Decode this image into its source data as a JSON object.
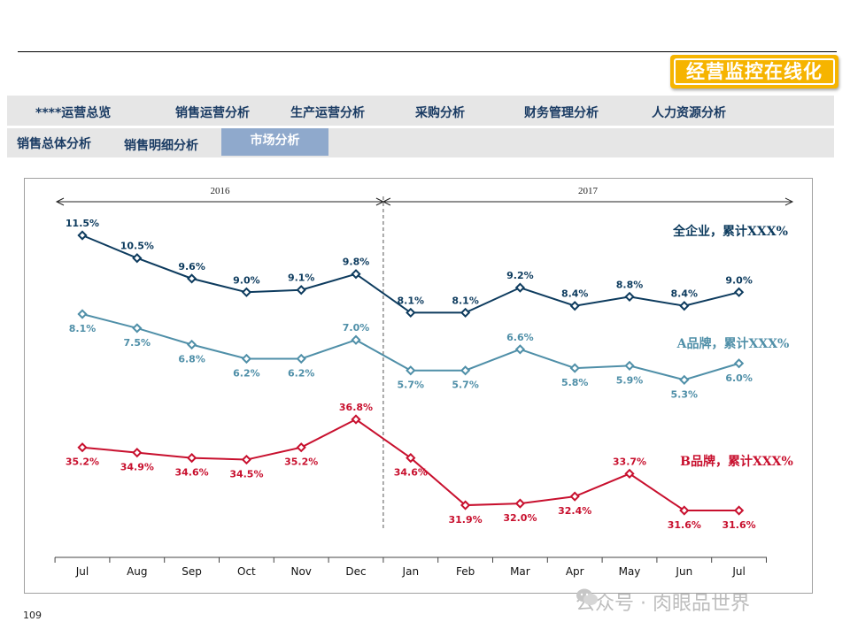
{
  "header": {
    "banner_text": "经营监控在线化"
  },
  "nav": {
    "primary_tabs": [
      "****运营总览",
      "销售运营分析",
      "生产运营分析",
      "采购分析",
      "财务管理分析",
      "人力资源分析"
    ],
    "secondary_tabs": [
      "销售总体分析",
      "销售明细分析",
      "市场分析"
    ],
    "active_secondary": "市场分析"
  },
  "colors": {
    "total": "#0d3b5e",
    "brand_a": "#4f8fa8",
    "brand_b": "#c8102e",
    "active_tab": "#8fa9cc",
    "banner": "#f6b400"
  },
  "chart_data": {
    "type": "line",
    "categories": [
      "Jul",
      "Aug",
      "Sep",
      "Oct",
      "Nov",
      "Dec",
      "Jan",
      "Feb",
      "Mar",
      "Apr",
      "May",
      "Jun",
      "Jul"
    ],
    "years": [
      {
        "label": "2016",
        "from": 0,
        "to": 5
      },
      {
        "label": "2017",
        "from": 6,
        "to": 12
      }
    ],
    "series": [
      {
        "name": "全企业，累计XXX%",
        "values": [
          11.5,
          10.5,
          9.6,
          9.0,
          9.1,
          9.8,
          8.1,
          8.1,
          9.2,
          8.4,
          8.8,
          8.4,
          9.0
        ],
        "labels": [
          "11.5%",
          "10.5%",
          "9.6%",
          "9.0%",
          "9.1%",
          "9.8%",
          "8.1%",
          "8.1%",
          "9.2%",
          "8.4%",
          "8.8%",
          "8.4%",
          "9.0%"
        ]
      },
      {
        "name": "A品牌，累计XXX%",
        "values": [
          8.1,
          7.5,
          6.8,
          6.2,
          6.2,
          7.0,
          5.7,
          5.7,
          6.6,
          5.8,
          5.9,
          5.3,
          6.0
        ],
        "labels": [
          "8.1%",
          "7.5%",
          "6.8%",
          "6.2%",
          "6.2%",
          "7.0%",
          "5.7%",
          "5.7%",
          "6.6%",
          "5.8%",
          "5.9%",
          "5.3%",
          "6.0%"
        ]
      },
      {
        "name": "B品牌，累计XXX%",
        "values": [
          35.2,
          34.9,
          34.6,
          34.5,
          35.2,
          36.8,
          34.6,
          31.9,
          32.0,
          32.4,
          33.7,
          31.6,
          31.6
        ],
        "labels": [
          "35.2%",
          "34.9%",
          "34.6%",
          "34.5%",
          "35.2%",
          "36.8%",
          "34.6%",
          "31.9%",
          "32.0%",
          "32.4%",
          "33.7%",
          "31.6%",
          "31.6%"
        ]
      }
    ]
  },
  "footer": {
    "page_number": "109",
    "watermark": "公众号 · 肉眼品世界"
  }
}
